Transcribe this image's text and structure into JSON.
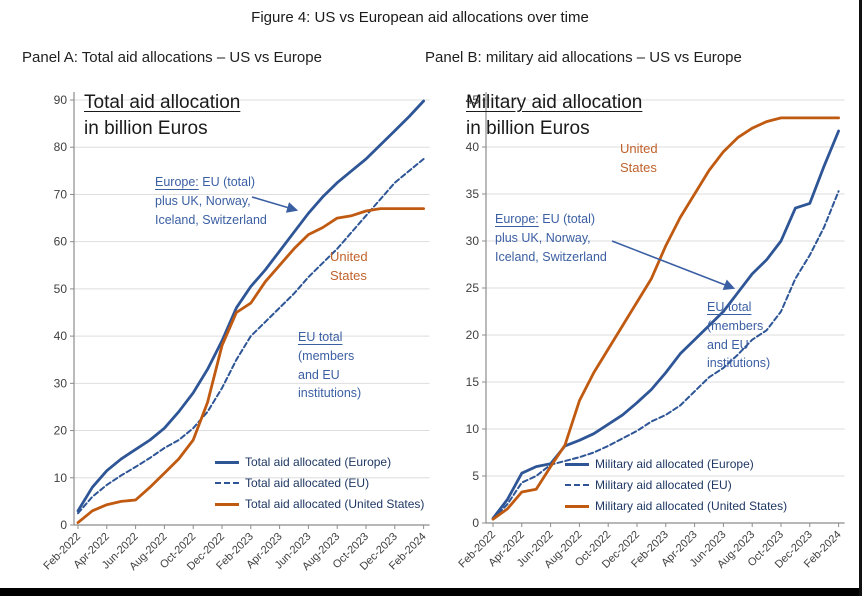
{
  "figure": {
    "title": "Figure 4: US vs European aid allocations over time"
  },
  "panels": [
    {
      "caption": "Panel A: Total aid allocations – US vs Europe",
      "chart_title": {
        "line1": "Total aid allocation",
        "line2": "in billion Euros"
      },
      "annotations": {
        "europe_note": {
          "lead": "Europe:",
          "line1_rest": " EU (total)",
          "line2": "plus UK, Norway,",
          "line3": "Iceland, Switzerland"
        },
        "us_note": {
          "line1": "United",
          "line2": "States"
        },
        "eu_note": {
          "lead": "EU total",
          "line2": "(members",
          "line3": "and EU",
          "line4": "institutions)"
        }
      }
    },
    {
      "caption": "Panel B: military aid allocations – US vs Europe",
      "chart_title": {
        "line1": "Military aid allocation",
        "line2": "in billion Euros"
      },
      "annotations": {
        "europe_note": {
          "lead": "Europe:",
          "line1_rest": " EU (total)",
          "line2": "plus UK, Norway,",
          "line3": "Iceland, Switzerland"
        },
        "us_note": {
          "line1": "United",
          "line2": "States"
        },
        "eu_note": {
          "lead": "EU total",
          "line2": "(members",
          "line3": "and EU",
          "line4": "institutions)"
        }
      }
    }
  ],
  "chart_data": [
    {
      "type": "line",
      "title": "Total aid allocation in billion Euros",
      "xlabel": "",
      "ylabel": "billion Euros",
      "ylim": [
        0,
        90
      ],
      "ytick_step": 10,
      "grid": true,
      "x": [
        "Feb-2022",
        "Mar-2022",
        "Apr-2022",
        "May-2022",
        "Jun-2022",
        "Jul-2022",
        "Aug-2022",
        "Sep-2022",
        "Oct-2022",
        "Nov-2022",
        "Dec-2022",
        "Jan-2023",
        "Feb-2023",
        "Mar-2023",
        "Apr-2023",
        "May-2023",
        "Jun-2023",
        "Jul-2023",
        "Aug-2023",
        "Sep-2023",
        "Oct-2023",
        "Nov-2023",
        "Dec-2023",
        "Jan-2024",
        "Feb-2024"
      ],
      "x_tick_labels": [
        "Feb-2022",
        "Apr-2022",
        "Jun-2022",
        "Aug-2022",
        "Oct-2022",
        "Dec-2022",
        "Feb-2023",
        "Apr-2023",
        "Jun-2023",
        "Aug-2023",
        "Oct-2023",
        "Dec-2023",
        "Feb-2024"
      ],
      "series": [
        {
          "label": "Total aid allocated (Europe)",
          "color": "#2E5596",
          "style": "solid",
          "values": [
            3,
            8,
            11.5,
            14,
            16,
            18,
            20.5,
            24,
            28,
            33,
            39,
            46,
            50.5,
            54,
            58,
            62,
            66,
            69.5,
            72.5,
            75,
            77.5,
            80.5,
            83.5,
            86.5,
            89.8
          ]
        },
        {
          "label": "Total aid allocated (EU)",
          "color": "#2E5596",
          "style": "dashed",
          "values": [
            2.5,
            6,
            8.5,
            10.5,
            12.3,
            14.2,
            16.3,
            18,
            20.5,
            24,
            29,
            35,
            40,
            43,
            46,
            49,
            52.5,
            55.5,
            58.5,
            62,
            65.5,
            69,
            72.5,
            75,
            77.5
          ]
        },
        {
          "label": "Total aid allocated (United States)",
          "color": "#C05A11",
          "style": "solid",
          "values": [
            0.5,
            3,
            4.3,
            5,
            5.3,
            8,
            11,
            14,
            18,
            26,
            38,
            45,
            47,
            51.5,
            55,
            58.5,
            61.5,
            63,
            65,
            65.5,
            66.5,
            67,
            67,
            67,
            67
          ]
        }
      ]
    },
    {
      "type": "line",
      "title": "Military aid allocation in billion Euros",
      "xlabel": "",
      "ylabel": "billion Euros",
      "ylim": [
        0,
        45
      ],
      "ytick_step": 5,
      "grid": true,
      "x": [
        "Feb-2022",
        "Mar-2022",
        "Apr-2022",
        "May-2022",
        "Jun-2022",
        "Jul-2022",
        "Aug-2022",
        "Sep-2022",
        "Oct-2022",
        "Nov-2022",
        "Dec-2022",
        "Jan-2023",
        "Feb-2023",
        "Mar-2023",
        "Apr-2023",
        "May-2023",
        "Jun-2023",
        "Jul-2023",
        "Aug-2023",
        "Sep-2023",
        "Oct-2023",
        "Nov-2023",
        "Dec-2023",
        "Jan-2024",
        "Feb-2024"
      ],
      "x_tick_labels": [
        "Feb-2022",
        "Apr-2022",
        "Jun-2022",
        "Aug-2022",
        "Oct-2022",
        "Dec-2022",
        "Feb-2023",
        "Apr-2023",
        "Jun-2023",
        "Aug-2023",
        "Oct-2023",
        "Dec-2023",
        "Feb-2024"
      ],
      "series": [
        {
          "label": "Military aid allocated (Europe)",
          "color": "#2E5596",
          "style": "solid",
          "values": [
            0.5,
            2.5,
            5.3,
            6,
            6.3,
            8.2,
            8.8,
            9.5,
            10.5,
            11.5,
            12.8,
            14.2,
            16,
            18,
            19.5,
            21,
            22.5,
            24.5,
            26.5,
            28,
            30,
            33.5,
            34,
            38,
            41.7
          ]
        },
        {
          "label": "Military aid allocated (EU)",
          "color": "#2E5596",
          "style": "dashed",
          "values": [
            0.4,
            2,
            4.3,
            5,
            6.2,
            6.6,
            7,
            7.5,
            8.2,
            9,
            9.8,
            10.8,
            11.5,
            12.5,
            14,
            15.5,
            16.5,
            17.9,
            19.5,
            20.5,
            22.5,
            26,
            28.5,
            31.5,
            35.3
          ]
        },
        {
          "label": "Military aid allocated (United States)",
          "color": "#C05A11",
          "style": "solid",
          "values": [
            0.4,
            1.5,
            3.3,
            3.6,
            6,
            8.3,
            13,
            16,
            18.5,
            21,
            23.5,
            26,
            29.5,
            32.5,
            35,
            37.5,
            39.5,
            41,
            42,
            42.7,
            43.1,
            43.1,
            43.1,
            43.1,
            43.1
          ]
        }
      ]
    }
  ]
}
